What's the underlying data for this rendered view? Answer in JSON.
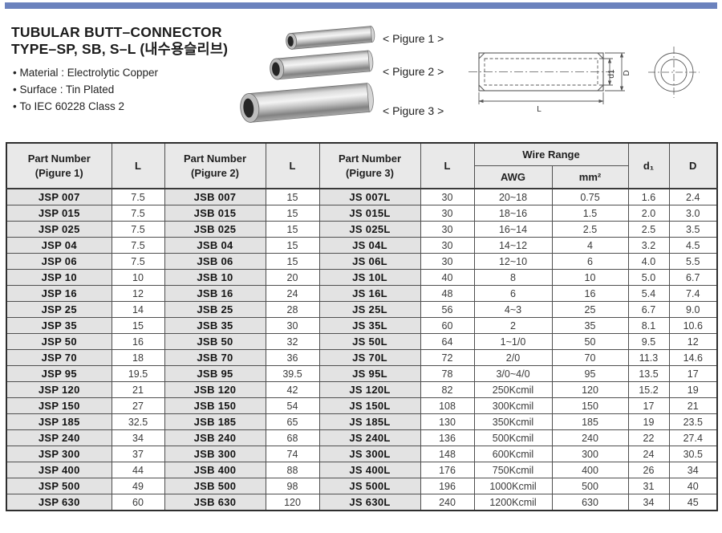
{
  "header": {
    "title_line1": "TUBULAR BUTT–CONNECTOR",
    "title_line2": "TYPE–SP, SB, S–L (내수용슬리브)",
    "bullets": [
      "Material : Electrolytic Copper",
      "Surface : Tin Plated",
      "To IEC 60228 Class 2"
    ]
  },
  "figures": {
    "label1": "< Pigure 1 >",
    "label2": "< Pigure 2 >",
    "label3": "< Pigure 3 >"
  },
  "drawing": {
    "dim_d1": "d1",
    "dim_D": "D",
    "dim_L": "L"
  },
  "colors": {
    "accent_bar": "#6b82bd",
    "header_bg": "#e9e9e9",
    "part_cell_bg": "#e3e3e3",
    "grid_border": "#4f4f4f"
  },
  "table": {
    "headers": {
      "part1_line1": "Part Number",
      "part1_line2": "(Pigure 1)",
      "l": "L",
      "part2_line1": "Part Number",
      "part2_line2": "(Pigure 2)",
      "part3_line1": "Part Number",
      "part3_line2": "(Pigure 3)",
      "wire_range": "Wire Range",
      "awg": "AWG",
      "mm2": "mm²",
      "d1": "d₁",
      "d": "D"
    },
    "rows": [
      [
        "JSP 007",
        "7.5",
        "JSB 007",
        "15",
        "JS 007L",
        "30",
        "20~18",
        "0.75",
        "1.6",
        "2.4"
      ],
      [
        "JSP 015",
        "7.5",
        "JSB 015",
        "15",
        "JS 015L",
        "30",
        "18~16",
        "1.5",
        "2.0",
        "3.0"
      ],
      [
        "JSP 025",
        "7.5",
        "JSB 025",
        "15",
        "JS 025L",
        "30",
        "16~14",
        "2.5",
        "2.5",
        "3.5"
      ],
      [
        "JSP 04",
        "7.5",
        "JSB 04",
        "15",
        "JS 04L",
        "30",
        "14~12",
        "4",
        "3.2",
        "4.5"
      ],
      [
        "JSP 06",
        "7.5",
        "JSB 06",
        "15",
        "JS 06L",
        "30",
        "12~10",
        "6",
        "4.0",
        "5.5"
      ],
      [
        "JSP 10",
        "10",
        "JSB 10",
        "20",
        "JS 10L",
        "40",
        "8",
        "10",
        "5.0",
        "6.7"
      ],
      [
        "JSP 16",
        "12",
        "JSB 16",
        "24",
        "JS 16L",
        "48",
        "6",
        "16",
        "5.4",
        "7.4"
      ],
      [
        "JSP 25",
        "14",
        "JSB 25",
        "28",
        "JS 25L",
        "56",
        "4~3",
        "25",
        "6.7",
        "9.0"
      ],
      [
        "JSP 35",
        "15",
        "JSB 35",
        "30",
        "JS 35L",
        "60",
        "2",
        "35",
        "8.1",
        "10.6"
      ],
      [
        "JSP 50",
        "16",
        "JSB 50",
        "32",
        "JS 50L",
        "64",
        "1~1/0",
        "50",
        "9.5",
        "12"
      ],
      [
        "JSP 70",
        "18",
        "JSB 70",
        "36",
        "JS 70L",
        "72",
        "2/0",
        "70",
        "11.3",
        "14.6"
      ],
      [
        "JSP 95",
        "19.5",
        "JSB 95",
        "39.5",
        "JS 95L",
        "78",
        "3/0~4/0",
        "95",
        "13.5",
        "17"
      ],
      [
        "JSP 120",
        "21",
        "JSB 120",
        "42",
        "JS 120L",
        "82",
        "250Kcmil",
        "120",
        "15.2",
        "19"
      ],
      [
        "JSP 150",
        "27",
        "JSB 150",
        "54",
        "JS 150L",
        "108",
        "300Kcmil",
        "150",
        "17",
        "21"
      ],
      [
        "JSP 185",
        "32.5",
        "JSB 185",
        "65",
        "JS 185L",
        "130",
        "350Kcmil",
        "185",
        "19",
        "23.5"
      ],
      [
        "JSP 240",
        "34",
        "JSB 240",
        "68",
        "JS 240L",
        "136",
        "500Kcmil",
        "240",
        "22",
        "27.4"
      ],
      [
        "JSP 300",
        "37",
        "JSB 300",
        "74",
        "JS 300L",
        "148",
        "600Kcmil",
        "300",
        "24",
        "30.5"
      ],
      [
        "JSP 400",
        "44",
        "JSB 400",
        "88",
        "JS 400L",
        "176",
        "750Kcmil",
        "400",
        "26",
        "34"
      ],
      [
        "JSP 500",
        "49",
        "JSB 500",
        "98",
        "JS 500L",
        "196",
        "1000Kcmil",
        "500",
        "31",
        "40"
      ],
      [
        "JSP 630",
        "60",
        "JSB 630",
        "120",
        "JS 630L",
        "240",
        "1200Kcmil",
        "630",
        "34",
        "45"
      ]
    ]
  }
}
